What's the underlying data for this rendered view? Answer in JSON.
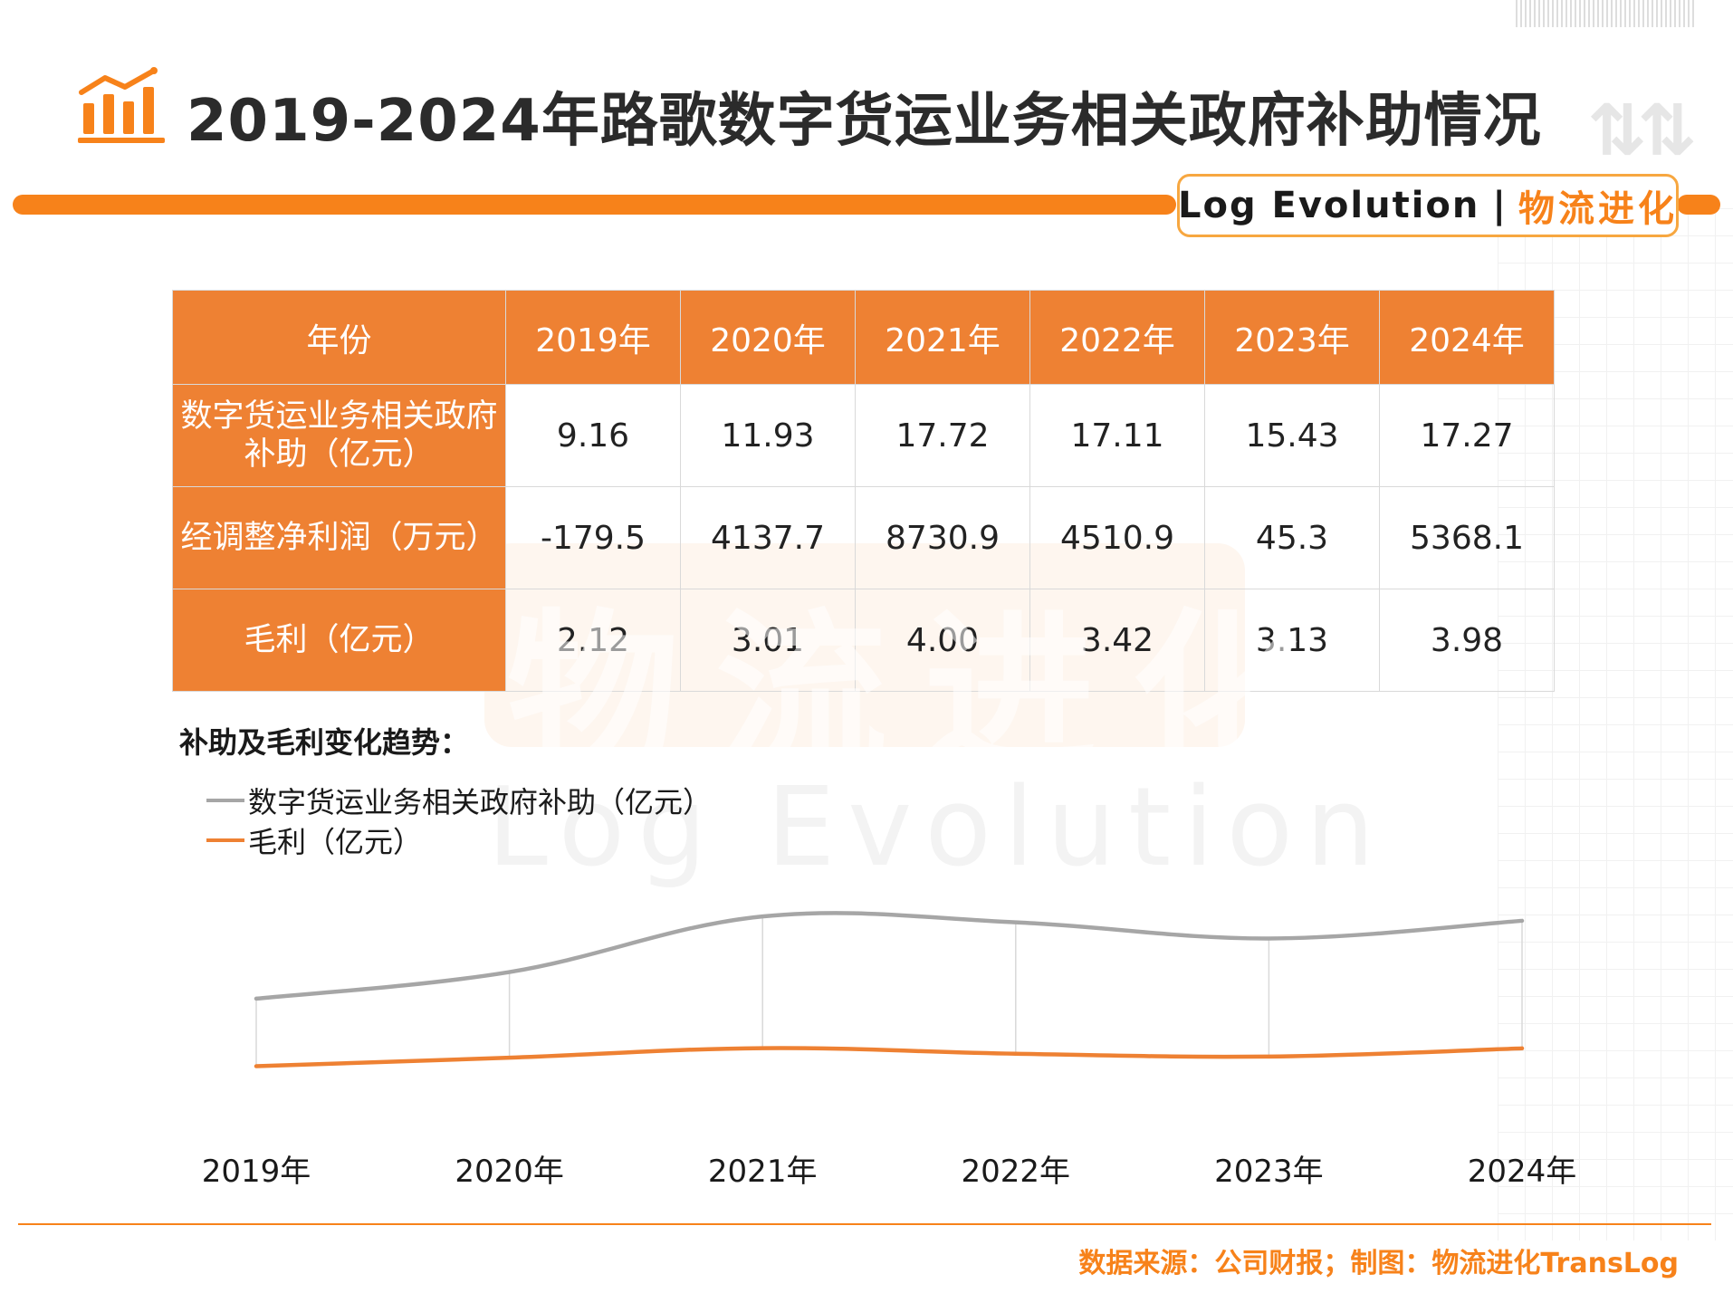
{
  "header": {
    "title": "2019-2024年路歌数字货运业务相关政府补助情况",
    "brand_en": "Log Evolution",
    "brand_sep": "|",
    "brand_cn": "物流进化"
  },
  "table": {
    "header_label": "年份",
    "years": [
      "2019年",
      "2020年",
      "2021年",
      "2022年",
      "2023年",
      "2024年"
    ],
    "rows": [
      {
        "label": "数字货运业务相关政府补助（亿元）",
        "values": [
          "9.16",
          "11.93",
          "17.72",
          "17.11",
          "15.43",
          "17.27"
        ]
      },
      {
        "label": "经调整净利润（万元）",
        "values": [
          "-179.5",
          "4137.7",
          "8730.9",
          "4510.9",
          "45.3",
          "5368.1"
        ]
      },
      {
        "label": "毛利（亿元）",
        "values": [
          "2.12",
          "3.01",
          "4.00",
          "3.42",
          "3.13",
          "3.98"
        ]
      }
    ]
  },
  "watermark": {
    "cn": "物流进化",
    "en": "Log Evolution"
  },
  "chart_data": {
    "type": "line",
    "title": "补助及毛利变化趋势：",
    "categories": [
      "2019年",
      "2020年",
      "2021年",
      "2022年",
      "2023年",
      "2024年"
    ],
    "series": [
      {
        "name": "数字货运业务相关政府补助（亿元）",
        "values": [
          9.16,
          11.93,
          17.72,
          17.11,
          15.43,
          17.27
        ],
        "color": "#a6a6a6"
      },
      {
        "name": "毛利（亿元）",
        "values": [
          2.12,
          3.01,
          4.0,
          3.42,
          3.13,
          3.98
        ],
        "color": "#ee8133"
      }
    ],
    "smooth": true,
    "drop_lines": true,
    "legend": "top-left",
    "grid": false
  },
  "footer": {
    "source": "数据来源：公司财报；制图：物流进化TransLog"
  },
  "colors": {
    "accent": "#f7821a",
    "table_header": "#ee8133"
  }
}
